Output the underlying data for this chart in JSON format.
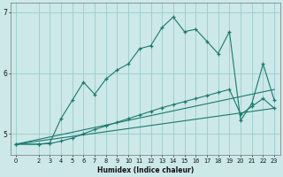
{
  "xlabel": "Humidex (Indice chaleur)",
  "bg_color": "#cce8e8",
  "grid_color": "#99cccc",
  "line_color": "#1a7a6e",
  "xlim": [
    -0.5,
    23.5
  ],
  "ylim": [
    4.65,
    7.15
  ],
  "yticks": [
    5,
    6,
    7
  ],
  "xticks": [
    0,
    2,
    3,
    4,
    5,
    6,
    7,
    8,
    9,
    10,
    11,
    12,
    13,
    14,
    15,
    16,
    17,
    18,
    19,
    20,
    21,
    22,
    23
  ],
  "line1_x": [
    0,
    2,
    3,
    4,
    5,
    6,
    7,
    8,
    9,
    10,
    11,
    12,
    13,
    14,
    15,
    16,
    17,
    18,
    19,
    20,
    21,
    22,
    23
  ],
  "line1_y": [
    4.83,
    4.83,
    4.85,
    5.25,
    5.55,
    5.85,
    5.65,
    5.9,
    6.05,
    6.15,
    6.4,
    6.45,
    6.75,
    6.92,
    6.68,
    6.72,
    6.52,
    6.32,
    6.68,
    5.22,
    5.5,
    6.15,
    5.55
  ],
  "line2_x": [
    0,
    2,
    3,
    4,
    5,
    6,
    7,
    8,
    9,
    10,
    11,
    12,
    13,
    14,
    15,
    16,
    17,
    18,
    19,
    20,
    21,
    22,
    23
  ],
  "line2_y": [
    4.83,
    4.83,
    4.84,
    4.88,
    4.93,
    5.0,
    5.07,
    5.13,
    5.19,
    5.25,
    5.31,
    5.37,
    5.43,
    5.48,
    5.53,
    5.58,
    5.63,
    5.68,
    5.73,
    5.32,
    5.45,
    5.58,
    5.42
  ],
  "line3_x": [
    0,
    23
  ],
  "line3_y": [
    4.83,
    5.73
  ],
  "line4_x": [
    0,
    23
  ],
  "line4_y": [
    4.83,
    5.42
  ]
}
